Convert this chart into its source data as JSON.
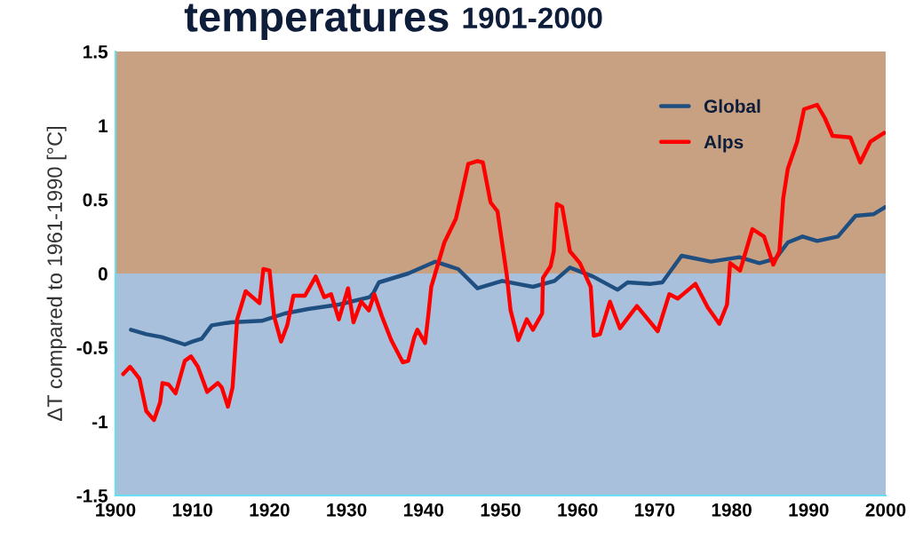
{
  "chart_data": {
    "type": "line",
    "title": "temperatures",
    "subtitle": "1901-2000",
    "ylabel": "ΔT compared to 1961-1990 [°C]",
    "xlim": [
      1900,
      2000
    ],
    "xticks": [
      1900,
      1910,
      1920,
      1930,
      1940,
      1950,
      1960,
      1970,
      1980,
      1990,
      2000
    ],
    "ylim": [
      -1.5,
      1.5
    ],
    "yticks": [
      -1.5,
      -1,
      -0.5,
      0,
      0.5,
      1,
      1.5
    ],
    "grid": false,
    "legend": "top right",
    "line_style": "solid",
    "marker": "none",
    "bands": [
      {
        "axis": "y",
        "from": 0,
        "to": 1.5,
        "color": "#c8a082"
      },
      {
        "axis": "y",
        "from": -1.5,
        "to": 0,
        "color": "#a8c0dc"
      }
    ],
    "series": [
      {
        "name": "Global",
        "color": "#1f4e80",
        "x": [
          1902,
          1904,
          1906,
          1909,
          1910,
          1911.2,
          1912.5,
          1915,
          1919,
          1922,
          1925,
          1929,
          1933,
          1933.5,
          1934.2,
          1938,
          1941.5,
          1944.5,
          1947,
          1950.2,
          1954.2,
          1957,
          1959,
          1962,
          1965.2,
          1966.5,
          1969.5,
          1971,
          1973.5,
          1977.3,
          1981,
          1983.6,
          1985.7,
          1987.3,
          1989.2,
          1991.1,
          1993.8,
          1996.1,
          1998.4,
          2000
        ],
        "values": [
          -0.38,
          -0.41,
          -0.43,
          -0.48,
          -0.46,
          -0.44,
          -0.35,
          -0.33,
          -0.32,
          -0.27,
          -0.24,
          -0.21,
          -0.16,
          -0.13,
          -0.06,
          0.0,
          0.08,
          0.03,
          -0.1,
          -0.05,
          -0.09,
          -0.05,
          0.04,
          -0.02,
          -0.11,
          -0.06,
          -0.07,
          -0.06,
          0.12,
          0.08,
          0.11,
          0.07,
          0.1,
          0.21,
          0.25,
          0.22,
          0.25,
          0.39,
          0.4,
          0.45
        ]
      },
      {
        "name": "Alps",
        "color": "#ff0000",
        "x": [
          1901,
          1901.9,
          1903.1,
          1904,
          1905,
          1905.8,
          1906.1,
          1906.9,
          1907.8,
          1909,
          1909.8,
          1910.7,
          1911.9,
          1913.3,
          1913.8,
          1914.6,
          1915.2,
          1915.8,
          1916.9,
          1918.7,
          1919.2,
          1920,
          1920.6,
          1921.5,
          1922.3,
          1923.1,
          1924.6,
          1926,
          1927.1,
          1928,
          1929,
          1930.2,
          1930.9,
          1931.9,
          1932.9,
          1933.6,
          1934.6,
          1935.8,
          1937.3,
          1938,
          1938.8,
          1939.2,
          1940.2,
          1940.6,
          1941,
          1942.7,
          1944.2,
          1945,
          1945.8,
          1947,
          1947.7,
          1948.7,
          1949.6,
          1950.8,
          1951.3,
          1952.3,
          1953.4,
          1954.2,
          1955.4,
          1955.5,
          1956.5,
          1956.9,
          1957.3,
          1958,
          1959,
          1960.3,
          1961.7,
          1962.1,
          1962.9,
          1964.2,
          1965.5,
          1967.7,
          1970.4,
          1971.9,
          1973,
          1975.3,
          1976.9,
          1978.4,
          1979.4,
          1979.8,
          1981.1,
          1982.7,
          1984.2,
          1985.4,
          1986.2,
          1986.7,
          1987.3,
          1988.5,
          1989.4,
          1991.1,
          1992.1,
          1993.1,
          1995.4,
          1996.7,
          1998,
          1999.8
        ],
        "values": [
          -0.68,
          -0.63,
          -0.71,
          -0.93,
          -0.99,
          -0.87,
          -0.74,
          -0.75,
          -0.81,
          -0.59,
          -0.56,
          -0.63,
          -0.8,
          -0.74,
          -0.77,
          -0.9,
          -0.77,
          -0.31,
          -0.12,
          -0.2,
          0.03,
          0.02,
          -0.29,
          -0.46,
          -0.35,
          -0.15,
          -0.15,
          -0.02,
          -0.16,
          -0.14,
          -0.31,
          -0.1,
          -0.33,
          -0.19,
          -0.25,
          -0.14,
          -0.29,
          -0.45,
          -0.6,
          -0.59,
          -0.43,
          -0.38,
          -0.47,
          -0.29,
          -0.09,
          0.21,
          0.37,
          0.55,
          0.74,
          0.76,
          0.75,
          0.48,
          0.42,
          -0.01,
          -0.25,
          -0.45,
          -0.31,
          -0.38,
          -0.27,
          -0.03,
          0.05,
          0.15,
          0.47,
          0.45,
          0.15,
          0.07,
          -0.09,
          -0.42,
          -0.41,
          -0.19,
          -0.37,
          -0.22,
          -0.39,
          -0.14,
          -0.17,
          -0.07,
          -0.23,
          -0.34,
          -0.21,
          0.07,
          0.02,
          0.3,
          0.25,
          0.06,
          0.15,
          0.51,
          0.71,
          0.89,
          1.11,
          1.14,
          1.05,
          0.93,
          0.92,
          0.75,
          0.89,
          0.95
        ]
      }
    ]
  }
}
